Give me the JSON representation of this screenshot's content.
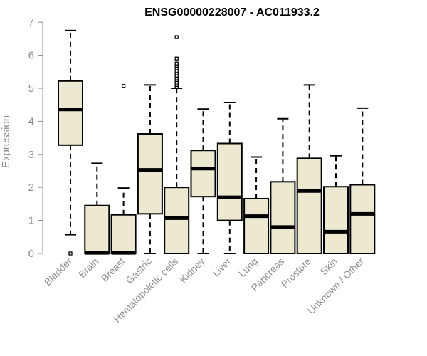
{
  "chart_data": {
    "type": "boxplot",
    "title": "ENSG00000228007 - AC011933.2",
    "xlabel": "",
    "ylabel": "Expression",
    "ylim": [
      0,
      7
    ],
    "yticks": [
      0,
      1,
      2,
      3,
      4,
      5,
      6,
      7
    ],
    "grid": false,
    "box_fill": "#ede8d0",
    "box_stroke": "#000000",
    "categories": [
      "Bladder",
      "Brain",
      "Breast",
      "Gastric",
      "Hematopoietic cells",
      "Kidney",
      "Liver",
      "Lung",
      "Pancreas",
      "Prostate",
      "Skin",
      "Unknown / Other"
    ],
    "boxes": [
      {
        "category": "Bladder",
        "min": 0.57,
        "q1": 3.28,
        "median": 4.36,
        "q3": 5.22,
        "max": 6.75,
        "outliers": [
          0.0
        ]
      },
      {
        "category": "Brain",
        "min": 0.0,
        "q1": 0.0,
        "median": 0.02,
        "q3": 1.45,
        "max": 2.73,
        "outliers": []
      },
      {
        "category": "Breast",
        "min": 0.0,
        "q1": 0.0,
        "median": 0.02,
        "q3": 1.17,
        "max": 1.98,
        "outliers": [
          5.07
        ]
      },
      {
        "category": "Gastric",
        "min": 0.0,
        "q1": 1.2,
        "median": 2.53,
        "q3": 3.62,
        "max": 5.1,
        "outliers": []
      },
      {
        "category": "Hematopoietic cells",
        "min": 0.0,
        "q1": 0.0,
        "median": 1.07,
        "q3": 2.0,
        "max": 5.0,
        "outliers": [
          5.05,
          5.1,
          5.15,
          5.2,
          5.25,
          5.3,
          5.38,
          5.45,
          5.52,
          5.6,
          5.68,
          5.75,
          5.9,
          6.55
        ]
      },
      {
        "category": "Kidney",
        "min": 0.0,
        "q1": 1.72,
        "median": 2.57,
        "q3": 3.12,
        "max": 4.37,
        "outliers": []
      },
      {
        "category": "Liver",
        "min": 0.0,
        "q1": 1.0,
        "median": 1.7,
        "q3": 3.33,
        "max": 4.57,
        "outliers": []
      },
      {
        "category": "Lung",
        "min": 0.0,
        "q1": 0.0,
        "median": 1.13,
        "q3": 1.66,
        "max": 2.92,
        "outliers": []
      },
      {
        "category": "Pancreas",
        "min": 0.0,
        "q1": 0.0,
        "median": 0.8,
        "q3": 2.17,
        "max": 4.08,
        "outliers": []
      },
      {
        "category": "Prostate",
        "min": 0.0,
        "q1": 0.0,
        "median": 1.89,
        "q3": 2.88,
        "max": 5.1,
        "outliers": []
      },
      {
        "category": "Skin",
        "min": 0.0,
        "q1": 0.0,
        "median": 0.66,
        "q3": 2.02,
        "max": 2.96,
        "outliers": []
      },
      {
        "category": "Unknown / Other",
        "min": 0.0,
        "q1": 0.0,
        "median": 1.2,
        "q3": 2.08,
        "max": 4.4,
        "outliers": []
      }
    ]
  }
}
